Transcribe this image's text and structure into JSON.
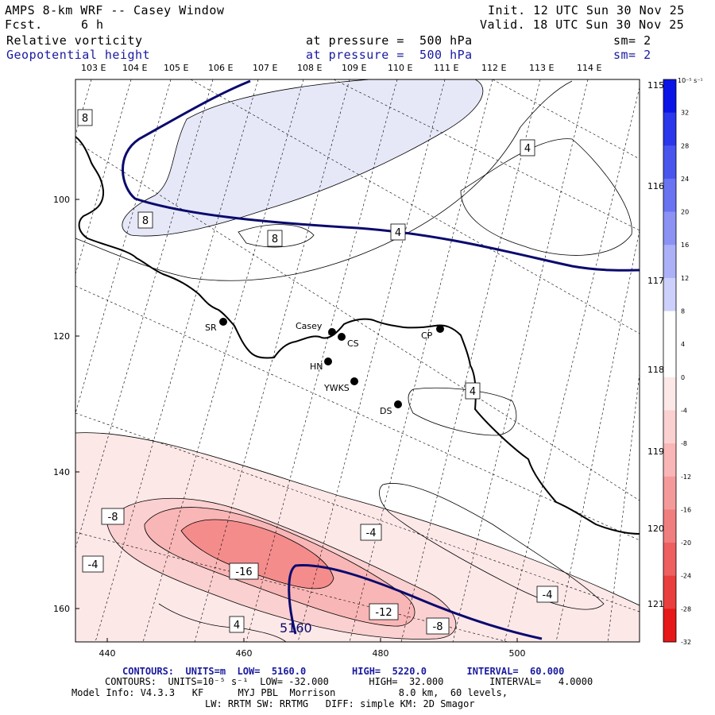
{
  "header": {
    "title": "AMPS 8-km WRF -- Casey Window",
    "fcst_label": "Fcst.",
    "fcst_value": "6 h",
    "init": "Init. 12 UTC Sun 30 Nov 25",
    "valid": "Valid. 18 UTC Sun 30 Nov 25",
    "field1": {
      "name": "Relative vorticity",
      "pressure": "at pressure =  500 hPa",
      "sm": "sm= 2"
    },
    "field2": {
      "name": "Geopotential height",
      "pressure": "at pressure =  500 hPa",
      "sm": "sm= 2"
    }
  },
  "top_longitudes": [
    "103 E",
    "104 E",
    "105 E",
    "106 E",
    "107 E",
    "108 E",
    "109 E",
    "110 E",
    "111 E",
    "112 E",
    "113 E",
    "114 E"
  ],
  "right_longitudes": [
    "115 E",
    "116 E",
    "117 E",
    "118 E",
    "119 E",
    "120 E",
    "121 E"
  ],
  "x_ticks": [
    "440",
    "460",
    "480",
    "500"
  ],
  "y_ticks": [
    "100",
    "120",
    "140",
    "160"
  ],
  "stations": [
    {
      "id": "SR",
      "label": "SR"
    },
    {
      "id": "casey",
      "label": "Casey"
    },
    {
      "id": "CS",
      "label": "CS"
    },
    {
      "id": "HN",
      "label": "HN"
    },
    {
      "id": "YWKS",
      "label": "YWKS"
    },
    {
      "id": "CP",
      "label": "CP"
    },
    {
      "id": "DS",
      "label": "DS"
    }
  ],
  "contour_labels": {
    "vort_8_a": "8",
    "vort_8_b": "8",
    "vort_8_c": "8",
    "vort_4_a": "4",
    "vort_4_b": "4",
    "vort_4_c": "4",
    "vort_4_d": "4",
    "vort_neg8_a": "-8",
    "vort_neg8_b": "-8",
    "vort_neg4_a": "-4",
    "vort_neg4_b": "-4",
    "vort_neg4_c": "-4",
    "vort_neg16": "-16",
    "vort_neg12": "-12",
    "height_5160": "5160"
  },
  "colorbar": {
    "unit": "10⁻⁵ s⁻¹",
    "levels": [
      "32",
      "28",
      "24",
      "20",
      "16",
      "12",
      "8",
      "4",
      "0",
      "-4",
      "-8",
      "-12",
      "-16",
      "-20",
      "-24",
      "-28",
      "-32"
    ],
    "colors": [
      "#0a14e6",
      "#2a37ea",
      "#4a55ee",
      "#6a73f1",
      "#8b92f4",
      "#abb0f7",
      "#ccd0fa",
      "#ffffff",
      "#ffffff",
      "#fde8e8",
      "#fbd0d0",
      "#f9b6b6",
      "#f59a9a",
      "#f17e7e",
      "#ee5f5f",
      "#ea3e3e",
      "#e61818"
    ]
  },
  "footer": {
    "line1": {
      "label": "CONTOURS:",
      "units": "UNITS=m",
      "low_label": "LOW=",
      "low": "5160.0",
      "high_label": "HIGH=",
      "high": "5220.0",
      "interval_label": "INTERVAL=",
      "interval": "60.000"
    },
    "line2": {
      "label": "CONTOURS:",
      "units": "UNITS=10⁻⁵ s⁻¹",
      "low_label": "LOW=",
      "low": "-32.000",
      "high_label": "HIGH=",
      "high": "32.000",
      "interval_label": "INTERVAL=",
      "interval": "4.0000"
    },
    "line3": "Model Info: V4.3.3   KF      MYJ PBL  Morrison           8.0 km,  60 levels,",
    "line4": "LW: RRTM SW: RRTMG   DIFF: simple KM: 2D Smagor"
  }
}
